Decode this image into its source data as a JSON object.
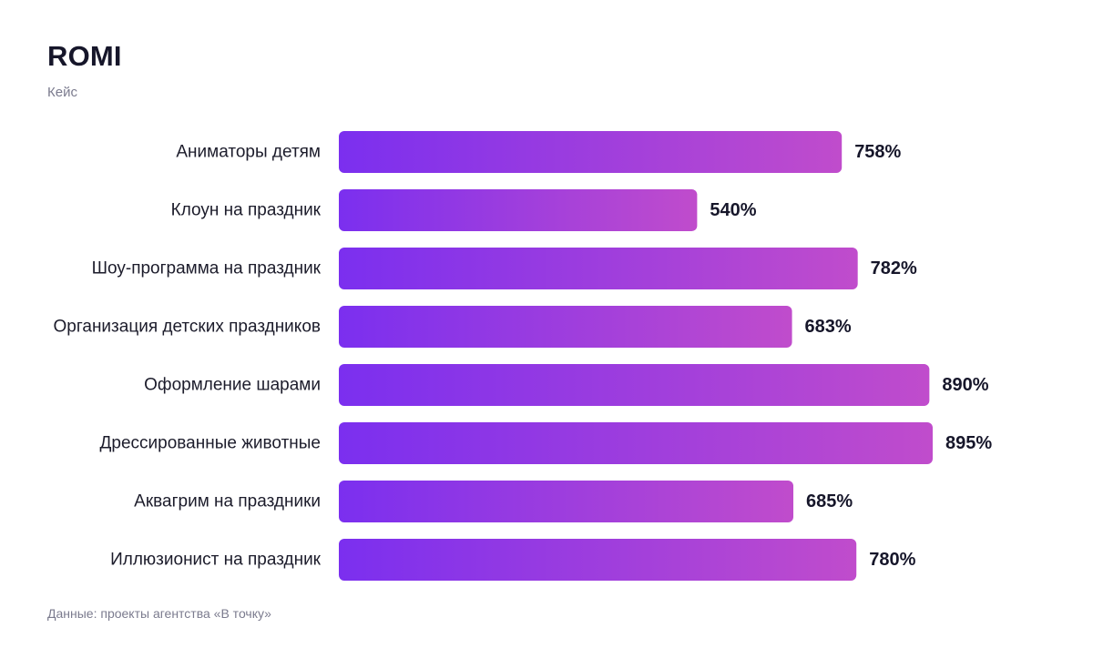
{
  "header": {
    "title": "ROMI",
    "subtitle": "Кейс"
  },
  "footer": {
    "source": "Данные: проекты агентства «В точку»"
  },
  "colors": {
    "bar_start": "#7b2fef",
    "bar_end": "#c04ccc"
  },
  "chart_data": {
    "type": "bar",
    "orientation": "horizontal",
    "title": "ROMI",
    "subtitle": "Кейс",
    "categories": [
      "Аниматоры детям",
      "Клоун на праздник",
      "Шоу-программа на праздник",
      "Организация детских праздников",
      "Оформление шарами",
      "Дрессированные животные",
      "Аквагрим на праздники",
      "Иллюзионист на праздник"
    ],
    "values": [
      758,
      540,
      782,
      683,
      890,
      895,
      685,
      780
    ],
    "value_labels": [
      "758%",
      "540%",
      "782%",
      "683%",
      "890%",
      "895%",
      "685%",
      "780%"
    ],
    "unit": "%",
    "xlim": [
      0,
      895
    ],
    "grid": false,
    "legend": "none"
  }
}
